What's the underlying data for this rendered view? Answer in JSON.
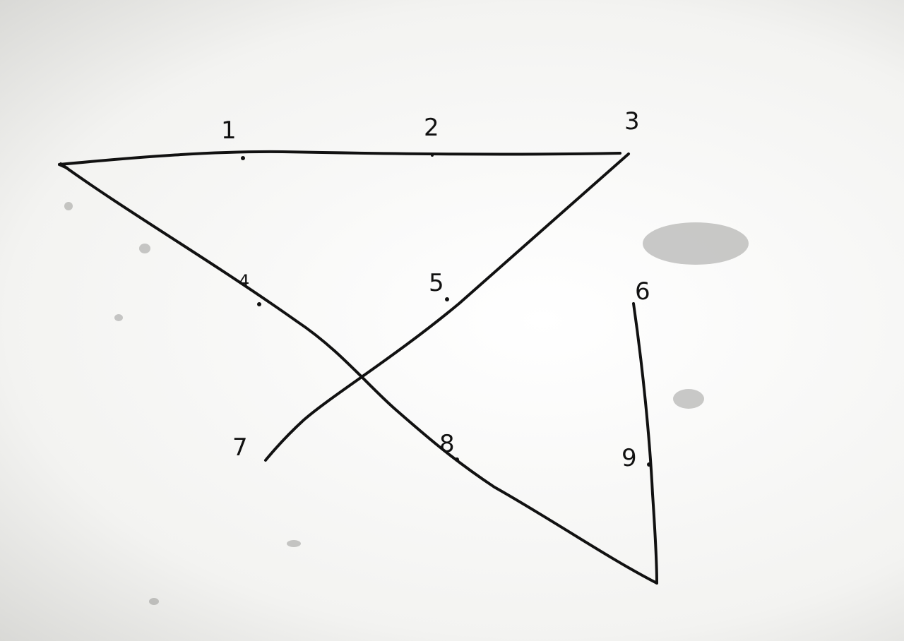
{
  "labels": {
    "p1": "1",
    "p2": "2",
    "p3": "3",
    "p4": "4",
    "p5": "5",
    "p6": "6",
    "p7": "7",
    "p8": "8",
    "p9": "9"
  },
  "colors": {
    "ink": "#111111",
    "paper": "#f4f4f2"
  }
}
